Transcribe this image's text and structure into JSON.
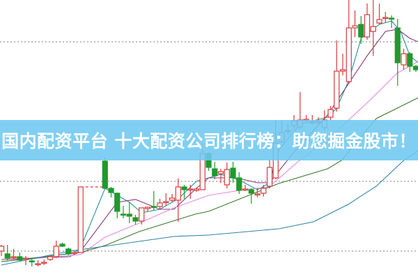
{
  "banner": {
    "text": "国内配资平台 十大配资公司排行榜：助您掘金股市！"
  },
  "chart_data": {
    "type": "candlestick",
    "title": "",
    "xlabel": "",
    "ylabel": "",
    "ylim": [
      0,
      400
    ],
    "xlim": [
      0,
      68
    ],
    "grid": {
      "horizontal_dotted_levels": [
        340,
        140,
        40
      ]
    },
    "colors": {
      "up": "#d83a3a",
      "down": "#1f9a2e",
      "grid": "#999999",
      "banner": "#6ec8f0"
    },
    "candle_format": [
      "slot",
      "open",
      "high",
      "low",
      "close"
    ],
    "candles": [
      [
        0,
        40,
        49,
        33,
        47
      ],
      [
        1,
        36,
        49,
        27,
        30
      ],
      [
        2,
        31,
        43,
        28,
        32
      ],
      [
        3,
        32,
        38,
        25,
        27
      ],
      [
        4,
        29,
        33,
        20,
        30
      ],
      [
        5,
        26,
        30,
        18,
        25
      ],
      [
        6,
        21,
        27,
        18,
        22
      ],
      [
        7,
        23,
        28,
        20,
        24
      ],
      [
        8,
        28,
        32,
        26,
        32
      ],
      [
        9,
        32,
        55,
        30,
        47
      ],
      [
        10,
        50,
        52,
        46,
        47
      ],
      [
        11,
        43,
        45,
        34,
        36
      ],
      [
        12,
        37,
        40,
        36,
        38
      ],
      [
        13,
        38,
        132,
        38,
        132
      ],
      [
        17,
        169,
        174,
        130,
        130
      ],
      [
        18,
        130,
        132,
        117,
        124
      ],
      [
        19,
        123,
        124,
        87,
        97
      ],
      [
        20,
        93,
        105,
        87,
        92
      ],
      [
        21,
        93,
        110,
        80,
        90
      ],
      [
        22,
        88,
        92,
        78,
        83
      ],
      [
        23,
        83,
        102,
        78,
        102
      ],
      [
        24,
        101,
        103,
        97,
        103
      ],
      [
        25,
        104,
        126,
        98,
        103
      ],
      [
        26,
        104,
        115,
        100,
        109
      ],
      [
        27,
        110,
        123,
        105,
        111
      ],
      [
        28,
        113,
        122,
        110,
        116
      ],
      [
        29,
        113,
        144,
        82,
        132
      ],
      [
        30,
        132,
        135,
        115,
        128
      ],
      [
        31,
        129,
        135,
        115,
        129
      ],
      [
        32,
        127,
        131,
        125,
        129
      ],
      [
        33,
        128,
        192,
        128,
        180
      ],
      [
        34,
        180,
        182,
        155,
        160
      ],
      [
        35,
        158,
        168,
        143,
        148
      ],
      [
        36,
        151,
        158,
        138,
        154
      ],
      [
        37,
        135,
        167,
        130,
        157
      ],
      [
        38,
        159,
        168,
        138,
        145
      ],
      [
        39,
        145,
        153,
        122,
        127
      ],
      [
        40,
        128,
        135,
        126,
        129
      ],
      [
        41,
        128,
        130,
        108,
        123
      ],
      [
        42,
        122,
        130,
        117,
        122
      ],
      [
        43,
        123,
        135,
        118,
        130
      ],
      [
        44,
        133,
        170,
        130,
        160
      ],
      [
        45,
        145,
        227,
        143,
        195
      ],
      [
        46,
        197,
        227,
        195,
        210
      ],
      [
        47,
        212,
        223,
        208,
        213
      ],
      [
        48,
        220,
        235,
        215,
        227
      ],
      [
        49,
        218,
        268,
        215,
        228
      ],
      [
        50,
        228,
        235,
        224,
        229
      ],
      [
        51,
        225,
        235,
        222,
        225
      ],
      [
        52,
        225,
        232,
        221,
        226
      ],
      [
        53,
        217,
        242,
        214,
        228
      ],
      [
        54,
        232,
        248,
        228,
        243
      ],
      [
        55,
        245,
        342,
        240,
        298
      ],
      [
        56,
        298,
        323,
        292,
        300
      ],
      [
        57,
        283,
        400,
        280,
        360
      ],
      [
        58,
        360,
        385,
        347,
        363
      ],
      [
        59,
        365,
        377,
        337,
        347
      ],
      [
        60,
        347,
        395,
        343,
        379
      ],
      [
        61,
        355,
        400,
        320,
        362
      ],
      [
        62,
        367,
        395,
        365,
        372
      ],
      [
        63,
        374,
        383,
        367,
        375
      ],
      [
        64,
        374,
        378,
        360,
        373
      ],
      [
        65,
        360,
        373,
        277,
        310
      ],
      [
        66,
        307,
        330,
        300,
        323
      ],
      [
        67,
        323,
        325,
        297,
        305
      ],
      [
        68,
        305,
        307,
        297,
        300
      ]
    ],
    "suspension_gap": {
      "from_slot": 13,
      "to_slot": 17,
      "level": 132
    },
    "series": [
      {
        "color": "#2a8fa0",
        "points": [
          [
            0,
            25
          ],
          [
            6,
            30
          ],
          [
            12,
            38
          ],
          [
            13,
            45
          ],
          [
            17,
            130
          ],
          [
            21,
            110
          ],
          [
            23,
            95
          ],
          [
            26,
            100
          ],
          [
            29,
            115
          ],
          [
            32,
            140
          ],
          [
            36,
            150
          ],
          [
            39,
            142
          ],
          [
            42,
            128
          ],
          [
            44,
            138
          ],
          [
            45.5,
            185
          ],
          [
            49,
            222
          ],
          [
            53.5,
            232
          ],
          [
            55,
            245
          ],
          [
            57,
            285
          ],
          [
            59,
            345
          ],
          [
            62,
            365
          ],
          [
            64,
            370
          ],
          [
            65.5,
            355
          ],
          [
            67,
            320
          ],
          [
            68.4,
            310
          ]
        ]
      },
      {
        "color": "#8a3a7e",
        "points": [
          [
            0,
            28
          ],
          [
            11.2,
            32
          ],
          [
            13,
            40
          ],
          [
            19,
            110
          ],
          [
            22,
            114
          ],
          [
            26,
            100
          ],
          [
            28.3,
            100
          ],
          [
            32,
            130
          ],
          [
            34,
            145
          ],
          [
            38.6,
            145
          ],
          [
            42,
            138
          ],
          [
            44,
            138
          ],
          [
            47.8,
            180
          ],
          [
            53.5,
            235
          ],
          [
            60,
            320
          ],
          [
            63,
            355
          ],
          [
            65,
            358
          ],
          [
            67,
            345
          ],
          [
            68.4,
            340
          ]
        ]
      },
      {
        "color": "#e48ae4",
        "points": [
          [
            0,
            25
          ],
          [
            13,
            35
          ],
          [
            17,
            60
          ],
          [
            22.6,
            80
          ],
          [
            28.3,
            102
          ],
          [
            34,
            120
          ],
          [
            39.8,
            128
          ],
          [
            43.9,
            132
          ],
          [
            48.9,
            170
          ],
          [
            53.5,
            200
          ],
          [
            60.3,
            255
          ],
          [
            64.9,
            295
          ],
          [
            68.4,
            312
          ]
        ]
      },
      {
        "color": "#3d7a2e",
        "points": [
          [
            0,
            25
          ],
          [
            13,
            38
          ],
          [
            17,
            48
          ],
          [
            22.6,
            68
          ],
          [
            31.8,
            93
          ],
          [
            34,
            97
          ],
          [
            45.5,
            137
          ],
          [
            53.5,
            158
          ],
          [
            55.8,
            170
          ],
          [
            61.5,
            230
          ],
          [
            68.4,
            260
          ]
        ]
      },
      {
        "color": "#2f84a8",
        "points": [
          [
            0,
            20
          ],
          [
            11.2,
            40
          ],
          [
            17,
            47
          ],
          [
            28.3,
            61
          ],
          [
            34,
            63
          ],
          [
            45.5,
            72
          ],
          [
            51.2,
            82
          ],
          [
            56.9,
            107
          ],
          [
            61.5,
            133
          ],
          [
            66,
            170
          ],
          [
            68.4,
            184
          ]
        ]
      }
    ]
  }
}
